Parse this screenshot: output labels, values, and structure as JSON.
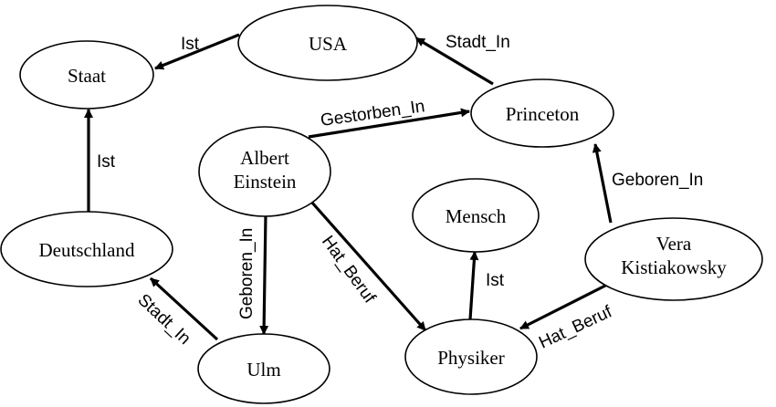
{
  "nodes": {
    "usa": {
      "lines": [
        "USA"
      ]
    },
    "staat": {
      "lines": [
        "Staat"
      ]
    },
    "princeton": {
      "lines": [
        "Princeton"
      ]
    },
    "einstein": {
      "lines": [
        "Albert",
        "Einstein"
      ]
    },
    "mensch": {
      "lines": [
        "Mensch"
      ]
    },
    "deutschland": {
      "lines": [
        "Deutschland"
      ]
    },
    "vera": {
      "lines": [
        "Vera",
        "Kistiakowsky"
      ]
    },
    "ulm": {
      "lines": [
        "Ulm"
      ]
    },
    "physiker": {
      "lines": [
        "Physiker"
      ]
    }
  },
  "edges": {
    "usa_staat": {
      "label": "Ist"
    },
    "princeton_usa": {
      "label": "Stadt_In"
    },
    "einstein_princeton": {
      "label": "Gestorben_In"
    },
    "deutschland_staat": {
      "label": "Ist"
    },
    "vera_princeton": {
      "label": "Geboren_In"
    },
    "einstein_ulm": {
      "label": "Geboren_In"
    },
    "einstein_physiker": {
      "label": "Hat_Beruf"
    },
    "ulm_deutschland": {
      "label": "Stadt_In"
    },
    "physiker_mensch": {
      "label": "Ist"
    },
    "vera_physiker": {
      "label": "Hat_Beruf"
    }
  }
}
